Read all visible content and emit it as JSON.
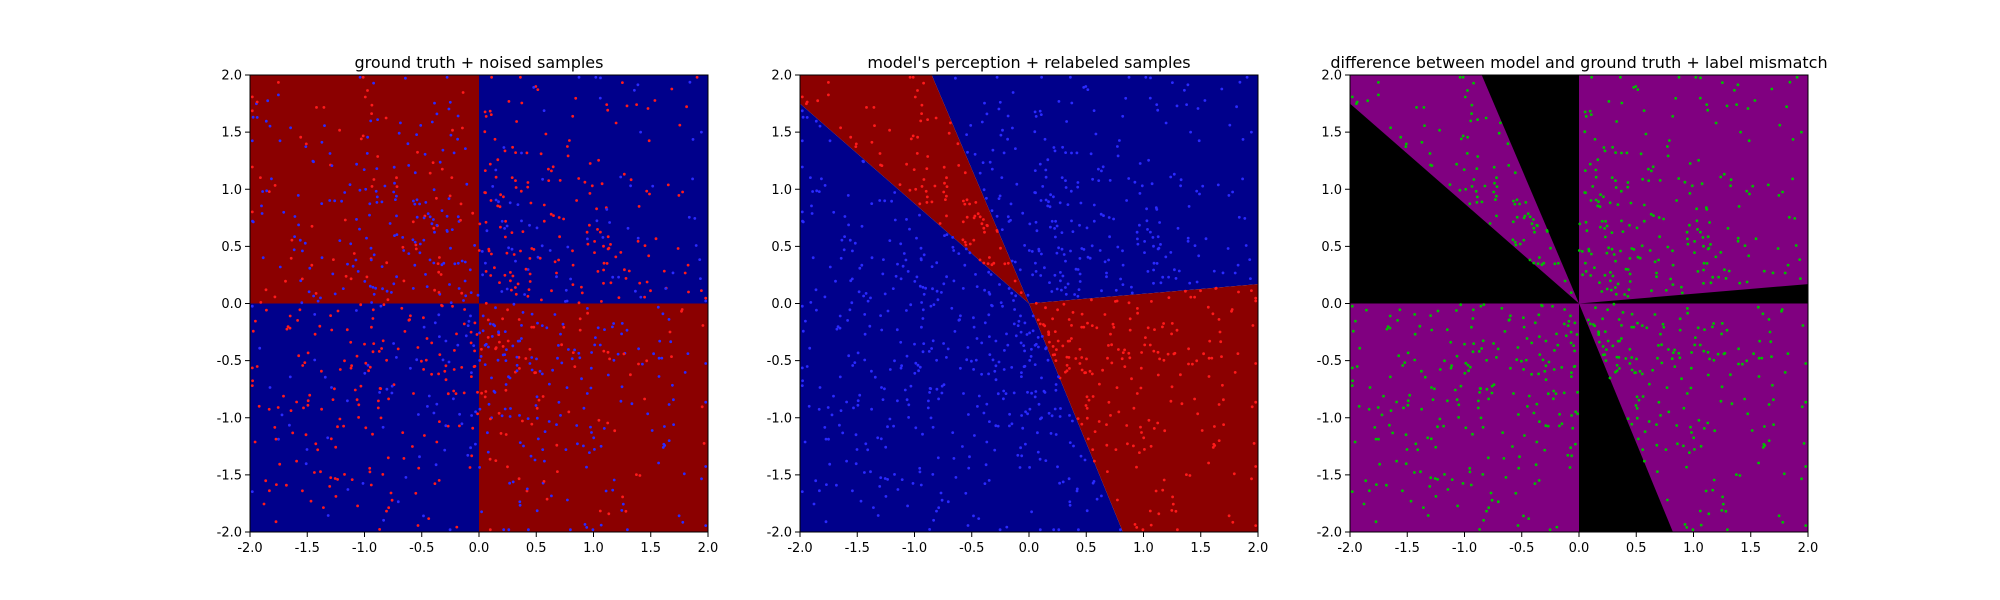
{
  "colors": {
    "dark_red": "#8b0000",
    "navy": "#00008b",
    "purple": "#800080",
    "black": "#000000",
    "red_point": "#ff1a1a",
    "blue_point": "#2a2aff",
    "green_point": "#00c000"
  },
  "chart_data": [
    {
      "type": "scatter",
      "title": "ground truth + noised samples",
      "xlabel": "",
      "ylabel": "",
      "xlim": [
        -2.0,
        2.0
      ],
      "ylim": [
        -2.0,
        2.0
      ],
      "xticks": [
        "-2.0",
        "-1.5",
        "-1.0",
        "-0.5",
        "0.0",
        "0.5",
        "1.0",
        "1.5",
        "2.0"
      ],
      "yticks": [
        "-2.0",
        "-1.5",
        "-1.0",
        "-0.5",
        "0.0",
        "0.5",
        "1.0",
        "1.5",
        "2.0"
      ],
      "grid": false,
      "background": "Quadrant regions: dark red where x<0,y>0 and x>0,y<0; navy where x>0,y>0 and x<0,y<0",
      "series": [
        {
          "color": "red",
          "points": "many small red dots, densest in quadrant x>0,y>0 and x<0,y<0"
        },
        {
          "color": "blue",
          "points": "many small blue dots, densest in quadrant x<0,y>0 and x>0,y<0"
        }
      ]
    },
    {
      "type": "scatter",
      "title": "model's perception + relabeled samples",
      "xlabel": "",
      "ylabel": "",
      "xlim": [
        -2.0,
        2.0
      ],
      "ylim": [
        -2.0,
        2.0
      ],
      "xticks": [
        "-2.0",
        "-1.5",
        "-1.0",
        "-0.5",
        "0.0",
        "0.5",
        "1.0",
        "1.5",
        "2.0"
      ],
      "yticks": [
        "-2.0",
        "-1.5",
        "-1.0",
        "-0.5",
        "0.0",
        "0.5",
        "1.0",
        "1.5",
        "2.0"
      ],
      "grid": false,
      "boundaries": [
        {
          "from": [
            -2.0,
            1.75
          ],
          "to": [
            0.0,
            0.0
          ]
        },
        {
          "from": [
            -0.85,
            2.0
          ],
          "to": [
            0.0,
            0.0
          ]
        },
        {
          "from": [
            0.0,
            0.0
          ],
          "to": [
            2.0,
            0.17
          ]
        },
        {
          "from": [
            0.0,
            0.0
          ],
          "to": [
            0.82,
            -2.0
          ]
        }
      ],
      "series": [
        {
          "color": "red",
          "points": "small red dots"
        },
        {
          "color": "blue",
          "points": "small blue dots"
        }
      ]
    },
    {
      "type": "scatter",
      "title": "difference between model and ground truth + label mismatch",
      "xlabel": "",
      "ylabel": "",
      "xlim": [
        -2.0,
        2.0
      ],
      "ylim": [
        -2.0,
        2.0
      ],
      "xticks": [
        "-2.0",
        "-1.5",
        "-1.0",
        "-0.5",
        "0.0",
        "0.5",
        "1.0",
        "1.5",
        "2.0"
      ],
      "yticks": [
        "-2.0",
        "-1.5",
        "-1.0",
        "-0.5",
        "0.0",
        "0.5",
        "1.0",
        "1.5",
        "2.0"
      ],
      "grid": false,
      "regions": "purple where model agrees with ground truth, black wedges where it disagrees",
      "series": [
        {
          "color": "green",
          "points": "small green dots marking label mismatches, inside black wedges"
        }
      ]
    }
  ]
}
